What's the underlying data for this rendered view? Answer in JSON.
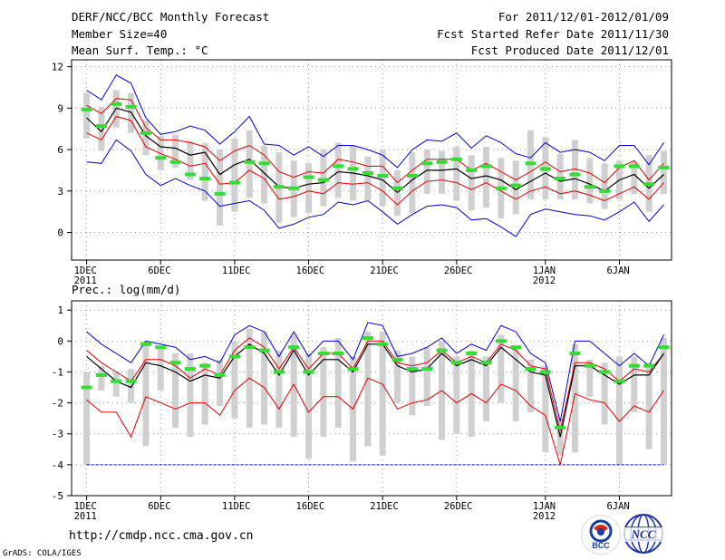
{
  "header": {
    "title": "DERF/NCC/BCC Monthly Forecast",
    "member_size": "Member Size=40",
    "variable_top": "Mean Surf. Temp.: °C",
    "valid_period": "For 2011/12/01-2012/01/09",
    "fcst_started": "Fcst Started Refer Date 2011/11/30",
    "fcst_produced": "Fcst Produced Date 2011/12/01"
  },
  "footer": {
    "url": "http://cmdp.ncc.cma.gov.cn",
    "credit": "GrADS: COLA/IGES",
    "logo_bcc": "BCC",
    "logo_ncc": "NCC"
  },
  "colors": {
    "envelope": "#0000d0",
    "pct": "#e00000",
    "mean": "#000000",
    "obs": "#33dd33",
    "box": "#d0d0d0",
    "grid": "#999999",
    "floor": "#0000aa"
  },
  "chart_data": [
    {
      "type": "line",
      "title": "Mean Surf. Temp.: °C",
      "x_labels": [
        {
          "day": 1,
          "line1": "1DEC",
          "line2": "2011"
        },
        {
          "day": 6,
          "line1": "6DEC",
          "line2": ""
        },
        {
          "day": 11,
          "line1": "11DEC",
          "line2": ""
        },
        {
          "day": 16,
          "line1": "16DEC",
          "line2": ""
        },
        {
          "day": 21,
          "line1": "21DEC",
          "line2": ""
        },
        {
          "day": 26,
          "line1": "26DEC",
          "line2": ""
        },
        {
          "day": 32,
          "line1": "1JAN",
          "line2": "2012"
        },
        {
          "day": 37,
          "line1": "6JAN",
          "line2": ""
        }
      ],
      "ylim": [
        -2,
        12.5
      ],
      "yticks": [
        0,
        3,
        6,
        9,
        12
      ],
      "grid": true,
      "days": [
        1,
        2,
        3,
        4,
        5,
        6,
        7,
        8,
        9,
        10,
        11,
        12,
        13,
        14,
        15,
        16,
        17,
        18,
        19,
        20,
        21,
        22,
        23,
        24,
        25,
        26,
        27,
        28,
        29,
        30,
        31,
        32,
        33,
        34,
        35,
        36,
        37,
        38,
        39,
        40
      ],
      "series": [
        {
          "name": "max",
          "role": "envelope",
          "values": [
            10.3,
            9.6,
            11.4,
            10.8,
            8.3,
            7.1,
            7.3,
            7.7,
            7.4,
            6.4,
            7.3,
            8.4,
            6.4,
            6.3,
            5.6,
            6.2,
            5.5,
            6.3,
            6.3,
            6.0,
            5.6,
            4.7,
            6.0,
            6.7,
            6.6,
            7.2,
            6.1,
            7.0,
            6.5,
            5.7,
            5.4,
            6.5,
            5.8,
            6.0,
            5.8,
            5.2,
            6.3,
            6.3,
            4.9,
            6.5
          ]
        },
        {
          "name": "p80",
          "role": "pct",
          "values": [
            9.2,
            8.6,
            9.7,
            9.6,
            7.6,
            6.7,
            6.7,
            6.5,
            6.2,
            5.2,
            5.9,
            6.3,
            5.6,
            4.4,
            4.0,
            4.4,
            4.3,
            5.3,
            5.1,
            4.8,
            4.8,
            3.6,
            4.5,
            5.3,
            5.3,
            5.3,
            4.5,
            5.0,
            4.4,
            3.8,
            4.4,
            5.1,
            4.4,
            4.6,
            4.3,
            3.6,
            4.7,
            5.2,
            3.8,
            5.0
          ]
        },
        {
          "name": "mean",
          "role": "mean",
          "values": [
            8.3,
            7.3,
            9.0,
            8.7,
            7.0,
            6.2,
            6.1,
            5.6,
            5.8,
            4.2,
            4.9,
            5.3,
            4.3,
            3.3,
            3.2,
            3.5,
            3.6,
            4.4,
            4.3,
            4.1,
            3.8,
            2.9,
            3.8,
            4.5,
            4.5,
            4.6,
            3.9,
            4.1,
            3.8,
            3.1,
            3.7,
            4.3,
            3.7,
            3.9,
            3.5,
            3.0,
            3.8,
            4.2,
            3.2,
            4.2
          ]
        },
        {
          "name": "p20",
          "role": "pct",
          "values": [
            7.2,
            6.7,
            8.4,
            8.1,
            6.2,
            5.7,
            5.3,
            4.8,
            5.0,
            3.5,
            3.6,
            4.5,
            3.9,
            2.4,
            2.6,
            3.0,
            2.8,
            3.6,
            3.5,
            3.6,
            3.0,
            2.0,
            3.0,
            3.7,
            3.8,
            3.6,
            3.1,
            3.6,
            3.0,
            2.4,
            3.0,
            3.3,
            2.8,
            3.0,
            2.7,
            2.3,
            2.8,
            3.3,
            2.4,
            3.6
          ]
        },
        {
          "name": "min",
          "role": "envelope",
          "values": [
            5.1,
            5.0,
            6.7,
            5.9,
            4.2,
            3.4,
            3.9,
            3.4,
            3.0,
            1.9,
            2.1,
            2.3,
            1.6,
            0.3,
            0.6,
            1.1,
            1.3,
            2.2,
            2.0,
            2.3,
            1.5,
            0.6,
            1.3,
            1.9,
            2.0,
            1.8,
            0.9,
            1.0,
            0.4,
            -0.3,
            1.3,
            1.7,
            1.5,
            1.3,
            1.2,
            0.9,
            1.5,
            2.2,
            0.8,
            2.0
          ]
        },
        {
          "name": "observed",
          "role": "obs",
          "values": [
            8.9,
            7.7,
            9.3,
            9.1,
            7.2,
            5.4,
            5.1,
            4.2,
            3.9,
            2.8,
            3.6,
            5.1,
            5.0,
            3.3,
            3.2,
            4.0,
            3.8,
            4.8,
            4.6,
            4.3,
            4.1,
            3.2,
            4.1,
            5.0,
            5.1,
            5.3,
            4.5,
            4.8,
            3.2,
            3.4,
            5.0,
            4.6,
            3.9,
            4.2,
            3.3,
            3.0,
            4.8,
            4.8,
            3.5,
            4.7
          ]
        },
        {
          "name": "box_high",
          "role": "box",
          "values": [
            10.1,
            9.1,
            10.3,
            10.1,
            8.1,
            7.0,
            7.1,
            6.6,
            6.5,
            6.0,
            6.8,
            7.4,
            6.3,
            5.8,
            5.2,
            5.0,
            6.0,
            6.5,
            6.3,
            5.5,
            6.0,
            4.5,
            5.8,
            6.0,
            5.9,
            6.2,
            5.6,
            6.2,
            5.4,
            5.2,
            7.4,
            6.9,
            5.7,
            6.7,
            5.4,
            5.0,
            5.2,
            5.1,
            5.6,
            5.9
          ]
        },
        {
          "name": "box_low",
          "role": "box",
          "values": [
            6.8,
            5.9,
            7.6,
            7.2,
            5.6,
            4.5,
            4.7,
            3.8,
            2.3,
            0.5,
            1.5,
            2.5,
            2.1,
            0.7,
            1.1,
            1.4,
            1.9,
            2.5,
            2.3,
            2.3,
            1.9,
            1.2,
            1.4,
            2.8,
            2.8,
            2.3,
            1.6,
            1.8,
            1.0,
            1.3,
            2.4,
            2.4,
            2.4,
            2.4,
            2.1,
            1.7,
            2.4,
            2.8,
            1.5,
            2.8
          ]
        }
      ]
    },
    {
      "type": "line",
      "title": "Prec.: log(mm/d)",
      "x_labels": [
        {
          "day": 1,
          "line1": "1DEC",
          "line2": "2011"
        },
        {
          "day": 6,
          "line1": "6DEC",
          "line2": ""
        },
        {
          "day": 11,
          "line1": "11DEC",
          "line2": ""
        },
        {
          "day": 16,
          "line1": "16DEC",
          "line2": ""
        },
        {
          "day": 21,
          "line1": "21DEC",
          "line2": ""
        },
        {
          "day": 26,
          "line1": "26DEC",
          "line2": ""
        },
        {
          "day": 32,
          "line1": "1JAN",
          "line2": "2012"
        },
        {
          "day": 37,
          "line1": "6JAN",
          "line2": ""
        }
      ],
      "ylim": [
        -5,
        1.3
      ],
      "yticks": [
        -5,
        -4,
        -3,
        -2,
        -1,
        0,
        1
      ],
      "grid": true,
      "floor_value": -4,
      "days": [
        1,
        2,
        3,
        4,
        5,
        6,
        7,
        8,
        9,
        10,
        11,
        12,
        13,
        14,
        15,
        16,
        17,
        18,
        19,
        20,
        21,
        22,
        23,
        24,
        25,
        26,
        27,
        28,
        29,
        30,
        31,
        32,
        33,
        34,
        35,
        36,
        37,
        38,
        39,
        40
      ],
      "series": [
        {
          "name": "max",
          "role": "envelope",
          "values": [
            0.3,
            -0.1,
            -0.4,
            -0.7,
            0.0,
            -0.1,
            -0.2,
            -0.6,
            -0.5,
            -0.7,
            0.2,
            0.5,
            0.3,
            -0.5,
            0.3,
            -0.5,
            0.0,
            0.0,
            -0.6,
            0.6,
            0.5,
            -0.5,
            -0.4,
            -0.2,
            0.1,
            -0.4,
            -0.1,
            -0.3,
            0.5,
            0.3,
            -0.4,
            -0.7,
            -2.6,
            0.0,
            0.0,
            -0.4,
            -0.8,
            -0.4,
            -0.8,
            0.2
          ]
        },
        {
          "name": "p80",
          "role": "pct",
          "values": [
            -0.3,
            -0.7,
            -1.0,
            -1.3,
            -0.6,
            -0.6,
            -0.8,
            -1.2,
            -0.9,
            -1.1,
            -0.3,
            0.1,
            -0.2,
            -0.9,
            -0.2,
            -0.9,
            -0.4,
            -0.4,
            -0.9,
            0.0,
            0.0,
            -0.7,
            -0.8,
            -0.7,
            -0.3,
            -0.7,
            -0.5,
            -0.7,
            -0.1,
            -0.3,
            -0.8,
            -0.9,
            -2.9,
            -0.7,
            -0.7,
            -0.9,
            -1.3,
            -0.9,
            -1.0,
            -0.4
          ]
        },
        {
          "name": "mean",
          "role": "mean",
          "values": [
            -0.5,
            -0.9,
            -1.3,
            -1.5,
            -0.7,
            -0.8,
            -1.0,
            -1.3,
            -1.1,
            -1.2,
            -0.5,
            -0.1,
            -0.4,
            -1.1,
            -0.3,
            -1.1,
            -0.6,
            -0.6,
            -1.0,
            -0.1,
            -0.1,
            -0.8,
            -1.0,
            -0.9,
            -0.4,
            -0.8,
            -0.6,
            -0.8,
            -0.2,
            -0.6,
            -1.0,
            -1.1,
            -3.1,
            -0.8,
            -0.8,
            -1.1,
            -1.4,
            -1.1,
            -1.1,
            -0.4
          ]
        },
        {
          "name": "p20",
          "role": "pct",
          "values": [
            -1.9,
            -2.3,
            -2.3,
            -3.1,
            -1.8,
            -2.0,
            -2.2,
            -2.0,
            -2.0,
            -2.4,
            -1.6,
            -1.2,
            -1.5,
            -2.2,
            -1.4,
            -2.3,
            -1.8,
            -1.8,
            -2.2,
            -1.2,
            -1.4,
            -2.2,
            -2.0,
            -1.9,
            -1.6,
            -2.0,
            -1.7,
            -2.0,
            -1.4,
            -1.6,
            -2.1,
            -2.4,
            -4.0,
            -1.7,
            -1.9,
            -2.0,
            -2.6,
            -2.1,
            -2.3,
            -1.6
          ]
        },
        {
          "name": "observed",
          "role": "obs",
          "values": [
            -1.5,
            -1.1,
            -1.3,
            -1.3,
            -0.1,
            -0.2,
            -0.7,
            -0.9,
            -0.8,
            -1.1,
            -0.5,
            -0.2,
            -0.3,
            -1.0,
            -0.2,
            -1.0,
            -0.4,
            -0.4,
            -0.9,
            0.1,
            -0.1,
            -0.6,
            -0.9,
            -0.9,
            -0.3,
            -0.7,
            -0.4,
            -0.7,
            0.0,
            -0.2,
            -0.9,
            -1.0,
            -2.8,
            -0.4,
            -0.8,
            -1.0,
            -1.3,
            -0.8,
            -0.8,
            -0.2
          ]
        },
        {
          "name": "box_high",
          "role": "box",
          "values": [
            -1.0,
            -0.8,
            -1.0,
            -0.9,
            0.0,
            -0.2,
            -0.4,
            -0.4,
            -0.7,
            -0.6,
            0.0,
            0.4,
            0.3,
            -0.3,
            0.2,
            -0.4,
            -0.2,
            0.1,
            -0.5,
            0.3,
            0.3,
            -0.3,
            -0.5,
            -0.2,
            0.0,
            -0.5,
            -0.3,
            -0.5,
            0.2,
            -0.2,
            -0.6,
            -0.8,
            -2.5,
            -0.1,
            -0.6,
            -0.7,
            -0.5,
            -0.5,
            -0.7,
            0.1
          ]
        },
        {
          "name": "box_low",
          "role": "box",
          "values": [
            -4.0,
            -1.6,
            -1.8,
            -2.0,
            -3.4,
            -1.6,
            -2.8,
            -3.1,
            -2.7,
            -2.1,
            -2.5,
            -2.8,
            -2.7,
            -2.8,
            -3.1,
            -3.8,
            -3.1,
            -2.8,
            -3.9,
            -3.4,
            -3.7,
            -2.0,
            -2.4,
            -2.1,
            -3.2,
            -3.0,
            -3.1,
            -2.6,
            -2.0,
            -2.6,
            -2.3,
            -3.6,
            -3.7,
            -3.6,
            -1.8,
            -2.7,
            -4.0,
            -2.3,
            -3.5,
            -4.0
          ]
        }
      ]
    }
  ]
}
